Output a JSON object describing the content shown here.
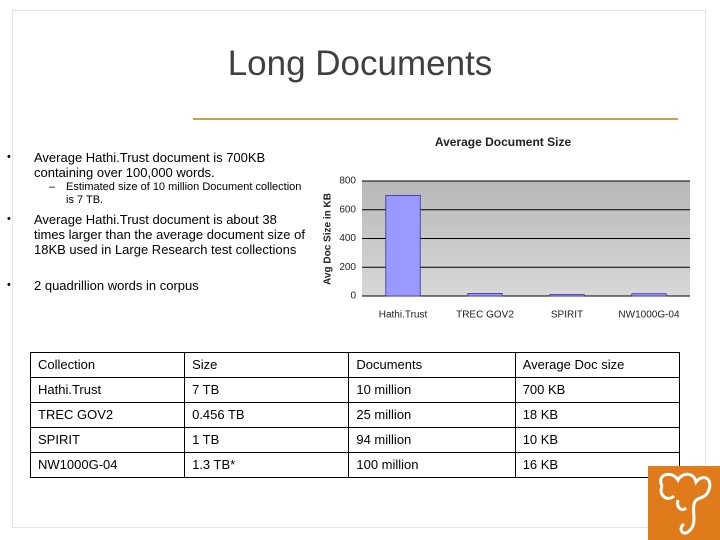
{
  "title": "Long Documents",
  "bullets": [
    {
      "text": "Average Hathi.Trust document is 700KB containing over 100,000 words.",
      "sub": [
        "Estimated size of 10 million Document collection is 7 TB."
      ]
    },
    {
      "text": "Average Hathi.Trust document is about 38 times larger than the average document size of 18KB used in Large Research test collections"
    },
    {
      "text": "2 quadrillion words in corpus"
    }
  ],
  "chart_data": {
    "type": "bar",
    "title": "Average Document Size",
    "y_label": "Avg Doc Size in KB",
    "categories": [
      "Hathi.Trust",
      "TREC GOV2",
      "SPIRIT",
      "NW1000G-04"
    ],
    "values": [
      700,
      18,
      10,
      16
    ],
    "color": "#9999ff",
    "ylim": [
      0,
      800
    ],
    "yticks": [
      0,
      200,
      400,
      600,
      800
    ],
    "grid": true
  },
  "table": {
    "header": [
      "Collection",
      "Size",
      "Documents",
      "Average Doc size"
    ],
    "rows": [
      [
        "Hathi.Trust",
        "7 TB",
        "10 million",
        "700 KB"
      ],
      [
        "TREC GOV2",
        "0.456 TB",
        "25 million",
        "18 KB"
      ],
      [
        "SPIRIT",
        "1 TB",
        "94 million",
        "10 KB"
      ],
      [
        "NW1000G-04",
        "1.3 TB*",
        "100 million",
        "16 KB"
      ]
    ]
  }
}
